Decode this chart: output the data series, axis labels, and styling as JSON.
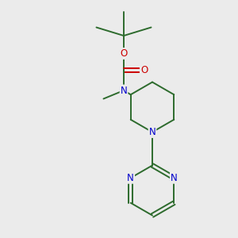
{
  "background_color": "#ebebeb",
  "bond_color": "#2d6b2d",
  "atom_N_color": "#0000cc",
  "atom_O_color": "#cc0000",
  "line_width": 1.4,
  "font_size": 8.5,
  "figsize": [
    3.0,
    3.0
  ],
  "dpi": 100,
  "xlim": [
    0,
    10
  ],
  "ylim": [
    0,
    10
  ]
}
